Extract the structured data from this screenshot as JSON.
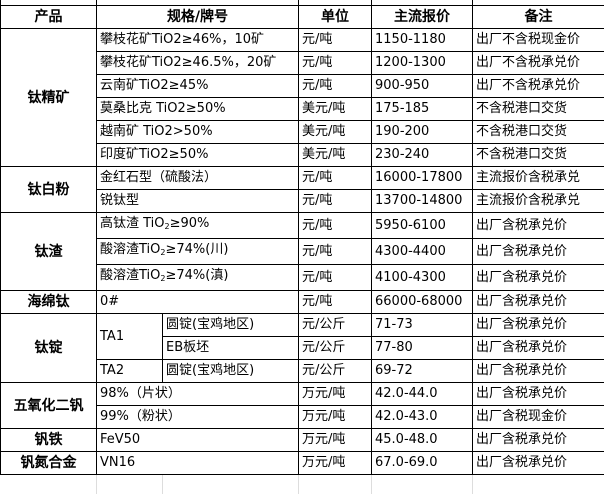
{
  "headers": {
    "product": "产品",
    "spec": "规格/牌号",
    "unit": "单位",
    "price": "主流报价",
    "note": "备注"
  },
  "groups": {
    "titanium_concentrate": {
      "name": "钛精矿",
      "rows": [
        {
          "spec": "攀枝花矿TiO2≥46%，10矿",
          "unit": "元/吨",
          "price": "1150-1180",
          "note": "出厂不含税现金价"
        },
        {
          "spec": "攀枝花矿TiO2≥46.5%，20矿",
          "unit": "元/吨",
          "price": "1200-1300",
          "note": "出厂不含税承兑价"
        },
        {
          "spec": "云南矿TiO2≥45%",
          "unit": "元/吨",
          "price": "900-950",
          "note": "出厂不含税承兑价"
        },
        {
          "spec": "莫桑比克 TiO2≥50%",
          "unit": "美元/吨",
          "price": "175-185",
          "note": "不含税港口交货"
        },
        {
          "spec": "越南矿 TiO2>50%",
          "unit": "美元/吨",
          "price": "190-200",
          "note": "不含税港口交货"
        },
        {
          "spec": "印度矿TiO2≥50%",
          "unit": "美元/吨",
          "price": "230-240",
          "note": "不含税港口交货"
        }
      ]
    },
    "titanium_dioxide": {
      "name": "钛白粉",
      "rows": [
        {
          "spec": "金红石型（硫酸法）",
          "unit": "元/吨",
          "price": "16000-17800",
          "note": "主流报价含税承兑"
        },
        {
          "spec": "锐钛型",
          "unit": "元/吨",
          "price": "13700-14800",
          "note": "主流报价含税承兑"
        }
      ]
    },
    "titanium_slag": {
      "name": "钛渣",
      "rows": [
        {
          "spec_pre": "高钛渣 TiO",
          "spec_sub": "2",
          "spec_post": "≥90%",
          "unit": "元/吨",
          "price": "5950-6100",
          "note": "出厂含税承兑价"
        },
        {
          "spec_pre": "酸溶渣TiO",
          "spec_sub": "2",
          "spec_post": "≥74%(川)",
          "unit": "元/吨",
          "price": "4300-4400",
          "note": "出厂含税承兑价"
        },
        {
          "spec_pre": "酸溶渣TiO",
          "spec_sub": "2",
          "spec_post": "≥74%(滇)",
          "unit": "元/吨",
          "price": "4100-4300",
          "note": "出厂含税承兑价"
        }
      ]
    },
    "sponge_titanium": {
      "name": "海绵钛",
      "rows": [
        {
          "spec": "0#",
          "unit": "元/吨",
          "price": "66000-68000",
          "note": "出厂含税承兑价"
        }
      ]
    },
    "titanium_ingot": {
      "name": "钛锭",
      "grade1": "TA1",
      "grade2": "TA2",
      "rows": [
        {
          "spec": "圆锭(宝鸡地区)",
          "unit": "元/公斤",
          "price": "71-73",
          "note": "出厂含税承兑价"
        },
        {
          "spec": "EB板坯",
          "unit": "元/公斤",
          "price": "77-80",
          "note": "出厂含税承兑价"
        },
        {
          "spec": "圆锭(宝鸡地区)",
          "unit": "元/公斤",
          "price": "69-72",
          "note": "出厂含税承兑价"
        }
      ]
    },
    "vanadium_pentoxide": {
      "name": "五氧化二钒",
      "rows": [
        {
          "spec": "98%（片状）",
          "unit": "万元/吨",
          "price": "42.0-44.0",
          "note": "出厂含税承兑价"
        },
        {
          "spec": "99%（粉状）",
          "unit": "万元/吨",
          "price": "42.0-43.0",
          "note": "出厂含税现金价"
        }
      ]
    },
    "ferrovanadium": {
      "name": "钒铁",
      "rows": [
        {
          "spec": "FeV50",
          "unit": "万元/吨",
          "price": "45.0-48.0",
          "note": "出厂含税承兑价"
        }
      ]
    },
    "vanadium_nitrogen": {
      "name": "钒氮合金",
      "rows": [
        {
          "spec": "VN16",
          "unit": "万元/吨",
          "price": "67.0-69.0",
          "note": "出厂含税承兑价"
        }
      ]
    }
  }
}
